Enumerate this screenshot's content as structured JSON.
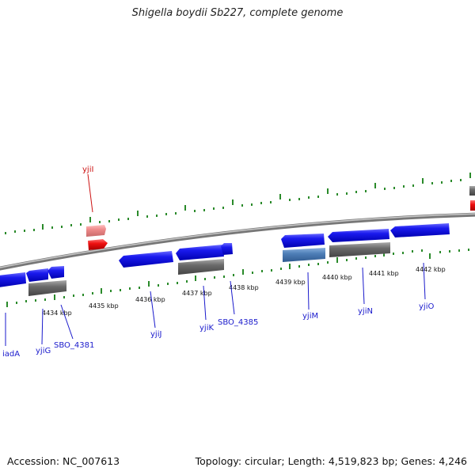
{
  "title": "Shigella boydii Sb227, complete genome",
  "footer": {
    "accession": "Accession: NC_007613",
    "stats": "Topology: circular; Length: 4,519,823 bp; Genes: 4,246"
  },
  "colors": {
    "forward_gene": "#1111ee",
    "forward_gene_light": "#5577bb",
    "cds_gray": "#666666",
    "red_gene": "#ee1111",
    "red_gene_light": "#ee8888",
    "tick_green": "#2a8a2a",
    "backbone": "#888888"
  },
  "kbp_labels": [
    "4434 kbp",
    "4435 kbp",
    "4436 kbp",
    "4437 kbp",
    "4438 kbp",
    "4439 kbp",
    "4440 kbp",
    "4441 kbp",
    "4442 kbp"
  ],
  "gene_labels": [
    "yjiI",
    "iadA",
    "yjiG",
    "SBO_4381",
    "yjiJ",
    "yjiK",
    "SBO_4385",
    "yjiM",
    "yjiN",
    "yjiO"
  ]
}
